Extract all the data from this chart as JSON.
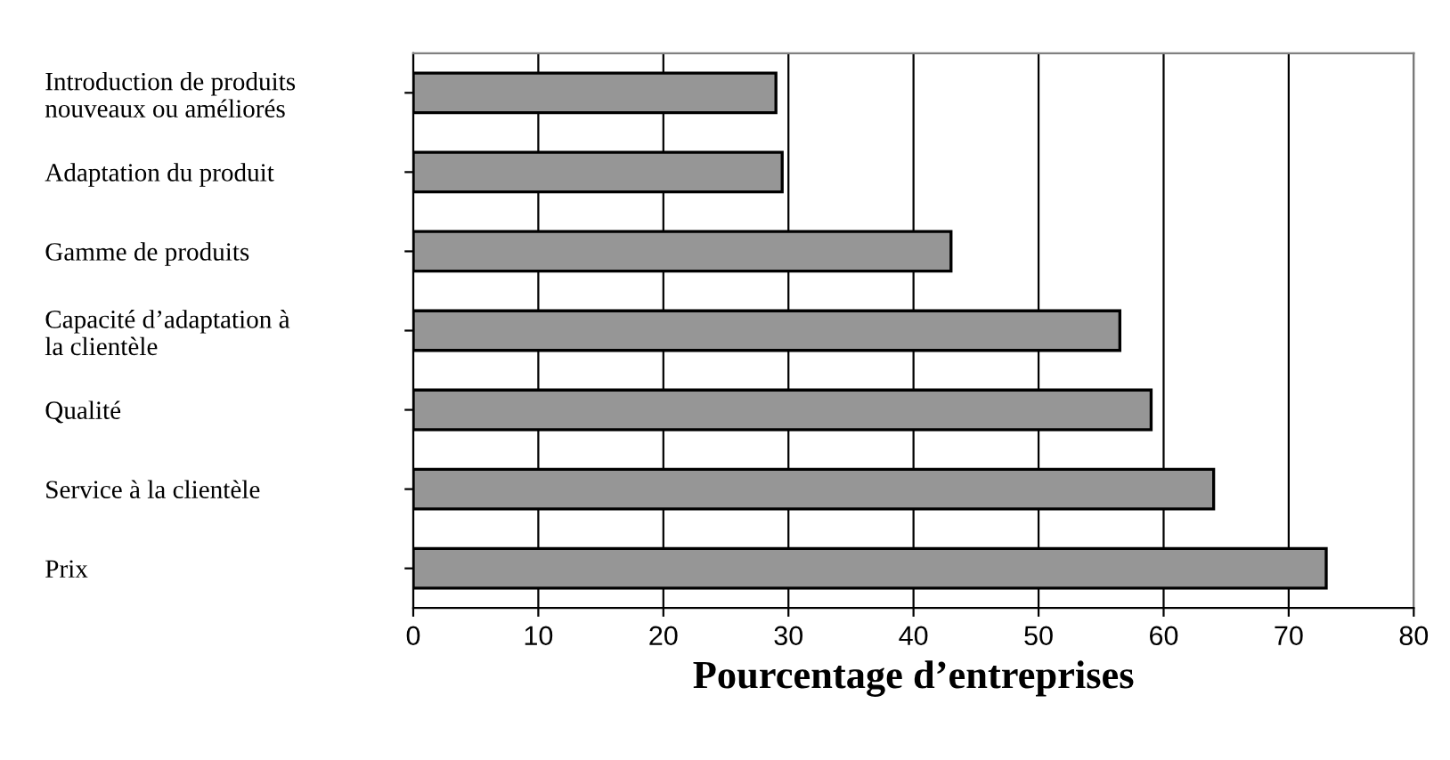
{
  "chart_data": {
    "type": "bar",
    "orientation": "horizontal",
    "xlabel": "Pourcentage d’entreprises",
    "categories": [
      "Introduction de produits\nnouveaux ou améliorés",
      "Adaptation du produit",
      "Gamme de produits",
      "Capacité d’adaptation à\nla clientèle",
      "Qualité",
      "Service à la clientèle",
      "Prix"
    ],
    "values": [
      29,
      29.5,
      43,
      56.5,
      59,
      64,
      73
    ],
    "color": "#969696",
    "xlim": [
      0,
      80
    ],
    "xticks": [
      0,
      10,
      20,
      30,
      40,
      50,
      60,
      70,
      80
    ],
    "grid": "x"
  }
}
